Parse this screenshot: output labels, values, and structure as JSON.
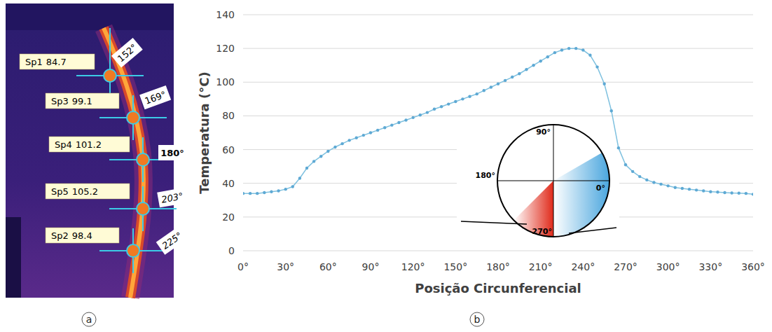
{
  "panel_labels": [
    "a",
    "b"
  ],
  "thermal_image": {
    "spots": [
      {
        "name": "Sp1",
        "value": 84.7,
        "angle": "152°"
      },
      {
        "name": "Sp3",
        "value": 99.1,
        "angle": "169°"
      },
      {
        "name": "Sp4",
        "value": 101.2,
        "angle": "180°"
      },
      {
        "name": "Sp5",
        "value": 105.2,
        "angle": "203°"
      },
      {
        "name": "Sp2",
        "value": 98.4,
        "angle": "225°"
      }
    ]
  },
  "inset_diagram": {
    "labels": {
      "top": "90°",
      "left": "180°",
      "right": "0°",
      "bottom": "270°"
    },
    "red_sector": [
      225,
      270
    ],
    "blue_sector": [
      270,
      390
    ]
  },
  "chart_data": {
    "type": "line",
    "x_label": "Posição Circunferencial",
    "y_label": "Temperatura (°C)",
    "x": [
      0,
      5,
      10,
      15,
      20,
      25,
      30,
      35,
      40,
      45,
      50,
      55,
      60,
      65,
      70,
      75,
      80,
      85,
      90,
      95,
      100,
      105,
      110,
      115,
      120,
      125,
      130,
      135,
      140,
      145,
      150,
      155,
      160,
      165,
      170,
      175,
      180,
      185,
      190,
      195,
      200,
      205,
      210,
      215,
      220,
      225,
      230,
      235,
      240,
      245,
      250,
      255,
      260,
      265,
      270,
      275,
      280,
      285,
      290,
      295,
      300,
      305,
      310,
      315,
      320,
      325,
      330,
      335,
      340,
      345,
      350,
      355,
      360
    ],
    "values": [
      34,
      34,
      34,
      34.5,
      35,
      35.5,
      36.5,
      38,
      43,
      49,
      53,
      56,
      59,
      61.5,
      63.5,
      65.5,
      67,
      68.5,
      70,
      71.5,
      73,
      74.5,
      76,
      77.5,
      79,
      80.5,
      82,
      84,
      85.5,
      87,
      88.5,
      90,
      91.5,
      93,
      95,
      97,
      99,
      101,
      103,
      105,
      107.5,
      110,
      112.5,
      115,
      117.5,
      119,
      120,
      120,
      119,
      116,
      109,
      99,
      83,
      61,
      51,
      47,
      44,
      42,
      40.5,
      39.5,
      38.5,
      37.5,
      37,
      36.5,
      36,
      35.5,
      35,
      34.8,
      34.5,
      34.3,
      34.2,
      34,
      33.5
    ],
    "color": "#7fc1df",
    "marker": "circle",
    "xlim": [
      0,
      360
    ],
    "xticks": [
      {
        "value": 0,
        "label": "0°"
      },
      {
        "value": 30,
        "label": "30°"
      },
      {
        "value": 60,
        "label": "60°"
      },
      {
        "value": 90,
        "label": "90°"
      },
      {
        "value": 120,
        "label": "120°"
      },
      {
        "value": 150,
        "label": "150°"
      },
      {
        "value": 180,
        "label": "180°"
      },
      {
        "value": 210,
        "label": "210°"
      },
      {
        "value": 240,
        "label": "240°"
      },
      {
        "value": 270,
        "label": "270°"
      },
      {
        "value": 300,
        "label": "300°"
      },
      {
        "value": 330,
        "label": "330°"
      },
      {
        "value": 360,
        "label": "360°"
      }
    ],
    "ylim": [
      0,
      140
    ],
    "yticks": [
      0,
      20,
      40,
      60,
      80,
      100,
      120,
      140
    ],
    "grid": true
  }
}
